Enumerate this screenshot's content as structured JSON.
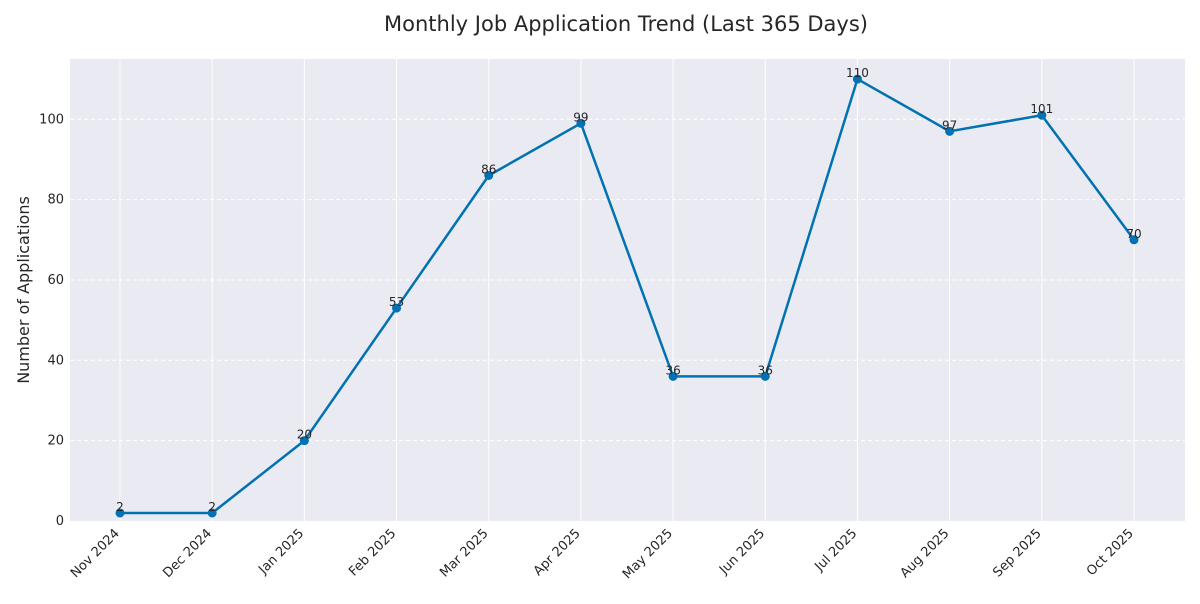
{
  "chart_data": {
    "type": "line",
    "title": "Monthly Job Application Trend (Last 365 Days)",
    "xlabel": "",
    "ylabel": "Number of Applications",
    "categories": [
      "Nov 2024",
      "Dec 2024",
      "Jan 2025",
      "Feb 2025",
      "Mar 2025",
      "Apr 2025",
      "May 2025",
      "Jun 2025",
      "Jul 2025",
      "Aug 2025",
      "Sep 2025",
      "Oct 2025"
    ],
    "series": [
      {
        "values": [
          2,
          2,
          20,
          53,
          86,
          99,
          36,
          36,
          110,
          97,
          101,
          70
        ],
        "color": "#0072b2"
      }
    ],
    "ylim": [
      0,
      115
    ],
    "yticks": [
      0,
      20,
      40,
      60,
      80,
      100
    ],
    "grid": true,
    "data_labels": true,
    "background_color": "#eaeaf2",
    "legend": "none"
  }
}
